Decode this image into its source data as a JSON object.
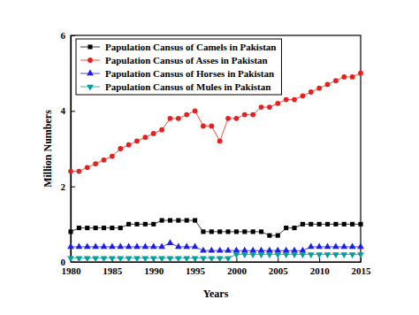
{
  "chart_data": {
    "type": "line",
    "x_label": "Years",
    "y_label": "Million Numbers",
    "x": [
      1980,
      1981,
      1982,
      1983,
      1984,
      1985,
      1986,
      1987,
      1988,
      1989,
      1990,
      1991,
      1992,
      1993,
      1994,
      1995,
      1996,
      1997,
      1998,
      1999,
      2000,
      2001,
      2002,
      2003,
      2004,
      2005,
      2006,
      2007,
      2008,
      2009,
      2010,
      2011,
      2012,
      2013,
      2014,
      2015
    ],
    "series": [
      {
        "name": "Papulation Cansus of Camels in Pakistan",
        "color": "#000000",
        "marker": "square",
        "values": [
          0.8,
          0.9,
          0.9,
          0.9,
          0.9,
          0.9,
          0.9,
          1.0,
          1.0,
          1.0,
          1.0,
          1.1,
          1.1,
          1.1,
          1.1,
          1.1,
          0.8,
          0.8,
          0.8,
          0.8,
          0.8,
          0.8,
          0.8,
          0.8,
          0.7,
          0.7,
          0.9,
          0.9,
          1.0,
          1.0,
          1.0,
          1.0,
          1.0,
          1.0,
          1.0,
          1.0
        ]
      },
      {
        "name": "Papulation Cansus of Asses in Pakistan",
        "color": "#e8201c",
        "marker": "circle",
        "values": [
          2.4,
          2.4,
          2.5,
          2.6,
          2.7,
          2.8,
          3.0,
          3.1,
          3.2,
          3.3,
          3.4,
          3.5,
          3.8,
          3.8,
          3.9,
          4.0,
          3.6,
          3.6,
          3.2,
          3.8,
          3.8,
          3.9,
          3.9,
          4.1,
          4.1,
          4.2,
          4.3,
          4.3,
          4.4,
          4.5,
          4.6,
          4.7,
          4.8,
          4.9,
          4.9,
          5.0
        ]
      },
      {
        "name": "Papulation Cansus of Horses in Pakistan",
        "color": "#1f1fe0",
        "marker": "triangle-up",
        "values": [
          0.4,
          0.4,
          0.4,
          0.4,
          0.4,
          0.4,
          0.4,
          0.4,
          0.4,
          0.4,
          0.4,
          0.4,
          0.5,
          0.4,
          0.4,
          0.4,
          0.3,
          0.3,
          0.3,
          0.3,
          0.3,
          0.3,
          0.3,
          0.3,
          0.3,
          0.3,
          0.3,
          0.3,
          0.3,
          0.4,
          0.4,
          0.4,
          0.4,
          0.4,
          0.4,
          0.4
        ]
      },
      {
        "name": "Papulation Cansus of Mules in Pakistan",
        "color": "#00a0a0",
        "marker": "triangle-down",
        "values": [
          0.1,
          0.1,
          0.1,
          0.1,
          0.1,
          0.1,
          0.1,
          0.1,
          0.1,
          0.1,
          0.1,
          0.1,
          0.1,
          0.1,
          0.1,
          0.1,
          0.1,
          0.1,
          0.1,
          0.1,
          0.2,
          0.2,
          0.2,
          0.2,
          0.2,
          0.2,
          0.2,
          0.2,
          0.2,
          0.2,
          0.2,
          0.2,
          0.2,
          0.2,
          0.2,
          0.2
        ]
      }
    ],
    "xlim": [
      1980,
      2015
    ],
    "xticks": [
      1980,
      1985,
      1990,
      1995,
      2000,
      2005,
      2010,
      2015
    ],
    "ylim": [
      0,
      6
    ],
    "yticks": [
      0,
      2,
      4,
      6
    ],
    "grid": false,
    "legend": "upper left"
  }
}
